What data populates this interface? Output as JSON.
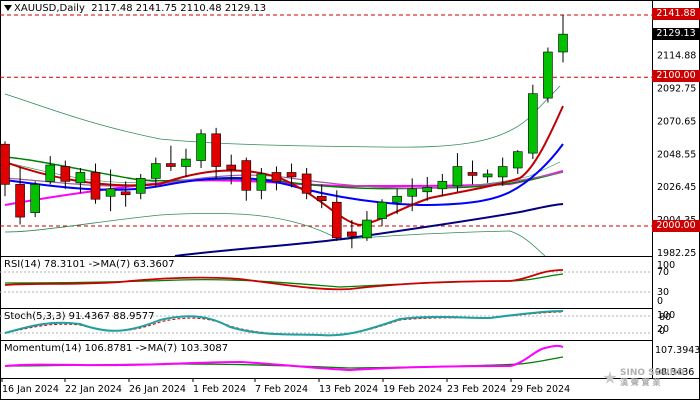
{
  "header": {
    "symbol": "XAUUSD,Daily",
    "ohlc": "2117.48 2141.75 2110.48 2129.13"
  },
  "price_labels": {
    "high_red": "2141.88",
    "current": "2129.13",
    "level_2100": "2100.00",
    "level_2000": "2000.00"
  },
  "colors": {
    "bull": "#00c000",
    "bear": "#e00000",
    "ma_red": "#c00000",
    "ma_blue": "#0000ff",
    "ma_navy": "#000080",
    "ma_magenta": "#ff00ff",
    "ma_green": "#008000",
    "bollinger": "#2e8b57",
    "dashed_level": "#cc0000"
  },
  "panels": {
    "rsi": {
      "label": "RSI(14) 78.3101  ->MA(7) 63.3607",
      "levels": [
        "100",
        "70",
        "30",
        "0"
      ]
    },
    "stoch": {
      "label": "Stoch(5,3,3) 91.4367 88.9577",
      "levels": [
        "100",
        "80",
        "20",
        "0"
      ]
    },
    "momentum": {
      "label": "Momentum(14) 106.8781  ->MA(7) 103.3087",
      "levels": [
        "107.3943",
        "98.3436"
      ]
    }
  },
  "logo": {
    "line1": "SINO SOUND",
    "line2": "漢 聲 實 業"
  },
  "chart_data": {
    "type": "candlestick",
    "title": "XAUUSD,Daily",
    "y_axis_ticks": [
      2114.88,
      2092.75,
      2070.65,
      2048.55,
      2026.45,
      2004.35,
      1982.25
    ],
    "dashed_levels": [
      2141.88,
      2100.0,
      2000.0
    ],
    "x_tick_labels": [
      "16 Jan 2024",
      "22 Jan 2024",
      "26 Jan 2024",
      "1 Feb 2024",
      "7 Feb 2024",
      "13 Feb 2024",
      "19 Feb 2024",
      "23 Feb 2024",
      "29 Feb 2024"
    ],
    "candles": [
      {
        "o": 2055,
        "h": 2057,
        "l": 2020,
        "c": 2028
      },
      {
        "o": 2028,
        "h": 2040,
        "l": 2001,
        "c": 2006
      },
      {
        "o": 2009,
        "h": 2030,
        "l": 2006,
        "c": 2028
      },
      {
        "o": 2030,
        "h": 2047,
        "l": 2028,
        "c": 2041
      },
      {
        "o": 2040,
        "h": 2044,
        "l": 2025,
        "c": 2030
      },
      {
        "o": 2029,
        "h": 2039,
        "l": 2022,
        "c": 2036
      },
      {
        "o": 2036,
        "h": 2042,
        "l": 2015,
        "c": 2018
      },
      {
        "o": 2020,
        "h": 2038,
        "l": 2010,
        "c": 2025
      },
      {
        "o": 2023,
        "h": 2030,
        "l": 2013,
        "c": 2021
      },
      {
        "o": 2022,
        "h": 2035,
        "l": 2018,
        "c": 2032
      },
      {
        "o": 2032,
        "h": 2046,
        "l": 2026,
        "c": 2042
      },
      {
        "o": 2042,
        "h": 2054,
        "l": 2037,
        "c": 2040
      },
      {
        "o": 2040,
        "h": 2052,
        "l": 2033,
        "c": 2045
      },
      {
        "o": 2044,
        "h": 2065,
        "l": 2039,
        "c": 2062
      },
      {
        "o": 2062,
        "h": 2066,
        "l": 2032,
        "c": 2040
      },
      {
        "o": 2041,
        "h": 2048,
        "l": 2028,
        "c": 2038
      },
      {
        "o": 2044,
        "h": 2046,
        "l": 2017,
        "c": 2024
      },
      {
        "o": 2024,
        "h": 2039,
        "l": 2018,
        "c": 2035
      },
      {
        "o": 2036,
        "h": 2040,
        "l": 2024,
        "c": 2030
      },
      {
        "o": 2036,
        "h": 2042,
        "l": 2026,
        "c": 2033
      },
      {
        "o": 2035,
        "h": 2039,
        "l": 2018,
        "c": 2022
      },
      {
        "o": 2020,
        "h": 2028,
        "l": 2012,
        "c": 2017
      },
      {
        "o": 2016,
        "h": 2024,
        "l": 1990,
        "c": 1992
      },
      {
        "o": 1996,
        "h": 2004,
        "l": 1985,
        "c": 1993
      },
      {
        "o": 1992,
        "h": 2010,
        "l": 1990,
        "c": 2004
      },
      {
        "o": 2005,
        "h": 2018,
        "l": 2000,
        "c": 2016
      },
      {
        "o": 2016,
        "h": 2025,
        "l": 2008,
        "c": 2020
      },
      {
        "o": 2020,
        "h": 2032,
        "l": 2010,
        "c": 2025
      },
      {
        "o": 2023,
        "h": 2033,
        "l": 2017,
        "c": 2026
      },
      {
        "o": 2025,
        "h": 2035,
        "l": 2020,
        "c": 2030
      },
      {
        "o": 2027,
        "h": 2049,
        "l": 2023,
        "c": 2040
      },
      {
        "o": 2036,
        "h": 2044,
        "l": 2028,
        "c": 2034
      },
      {
        "o": 2033,
        "h": 2038,
        "l": 2029,
        "c": 2035
      },
      {
        "o": 2033,
        "h": 2046,
        "l": 2027,
        "c": 2040
      },
      {
        "o": 2039,
        "h": 2051,
        "l": 2035,
        "c": 2050
      },
      {
        "o": 2049,
        "h": 2095,
        "l": 2045,
        "c": 2089
      },
      {
        "o": 2086,
        "h": 2120,
        "l": 2083,
        "c": 2117
      },
      {
        "o": 2117,
        "h": 2142,
        "l": 2110,
        "c": 2129
      }
    ]
  }
}
